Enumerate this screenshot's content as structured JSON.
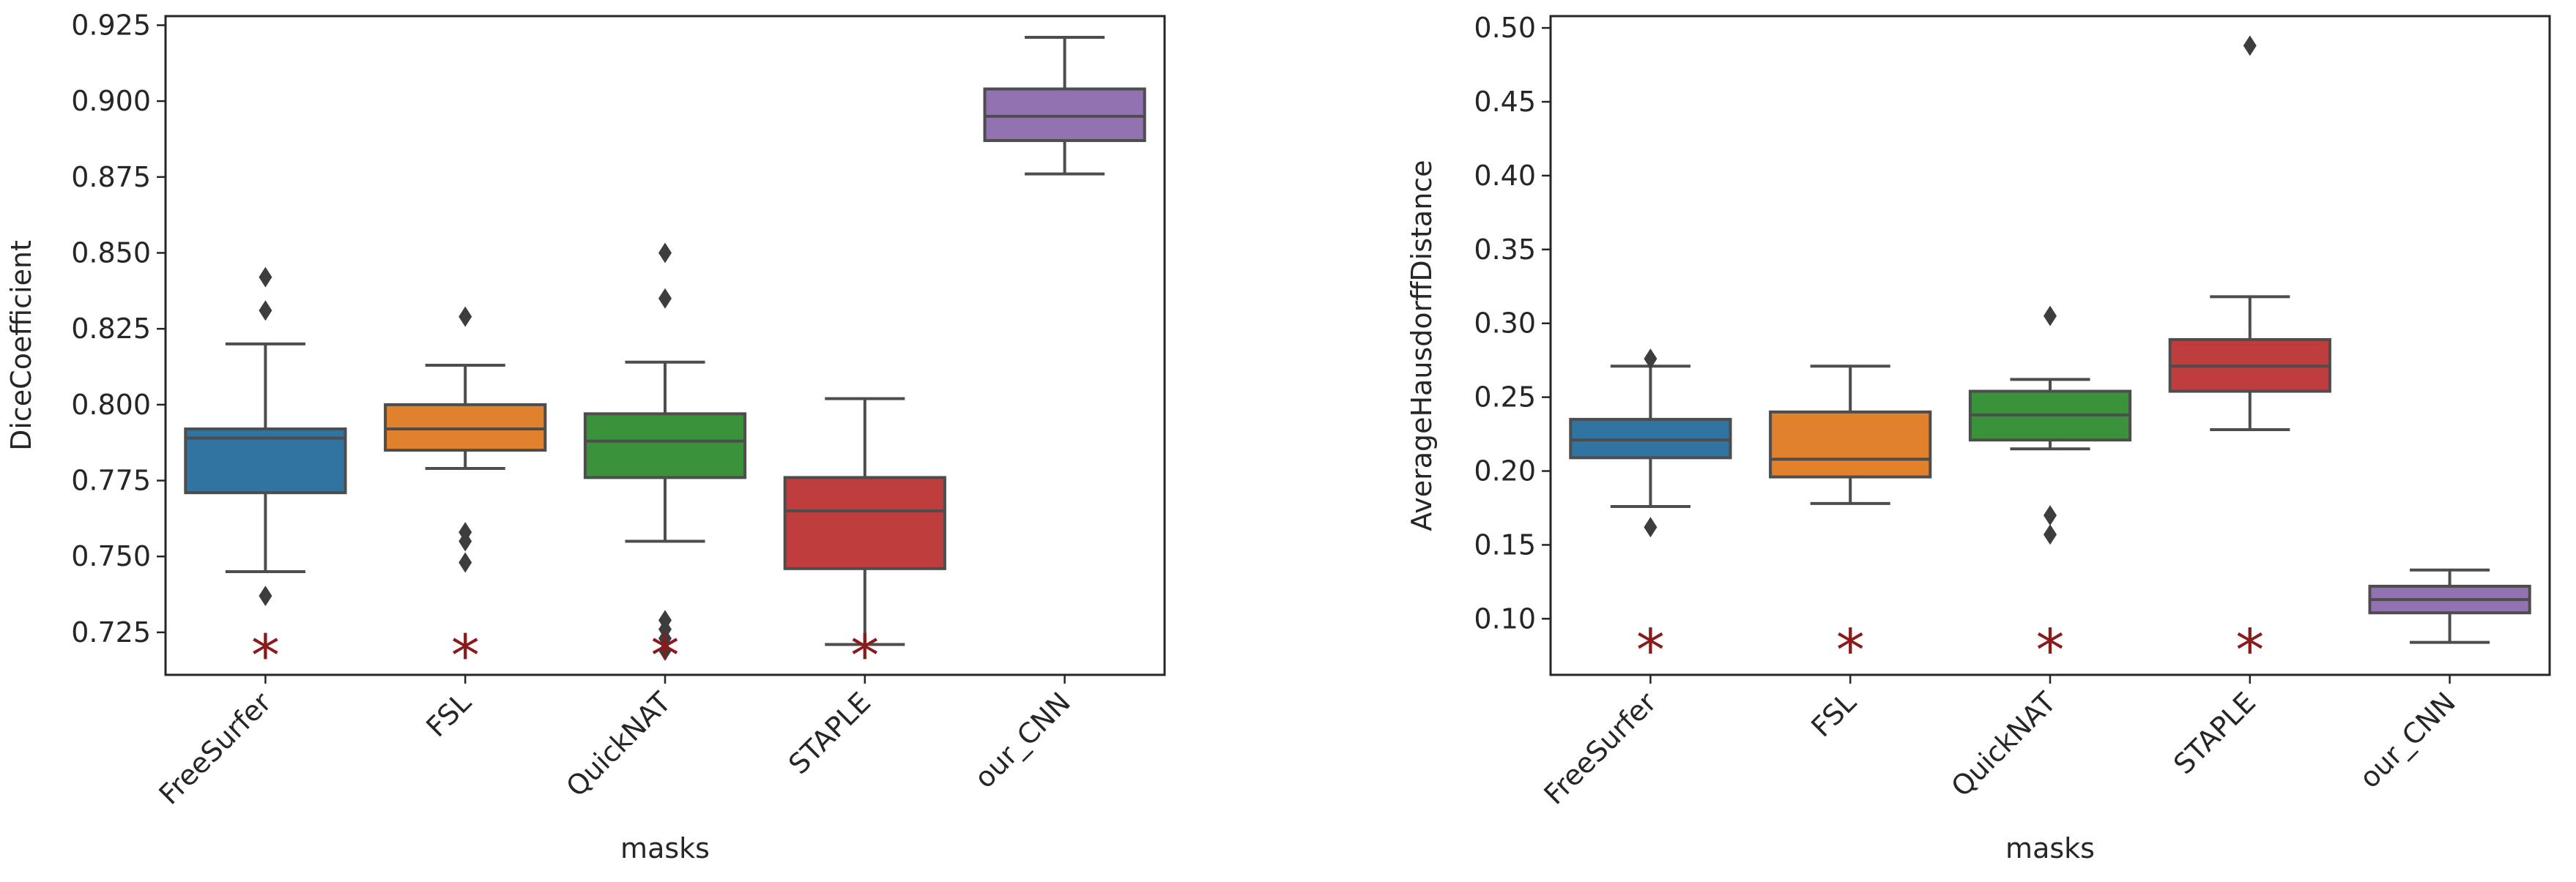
{
  "chart_data": [
    {
      "type": "box",
      "title": "",
      "xlabel": "masks",
      "ylabel": "DiceCoefficient",
      "ylim": [
        0.711,
        0.928
      ],
      "yticks": [
        "0.725",
        "0.750",
        "0.775",
        "0.800",
        "0.825",
        "0.850",
        "0.875",
        "0.900",
        "0.925"
      ],
      "categories": [
        "FreeSurfer",
        "FSL",
        "QuickNAT",
        "STAPLE",
        "our_CNN"
      ],
      "boxes": [
        {
          "name": "FreeSurfer",
          "color": "#3274a1",
          "whisker_low": 0.745,
          "q1": 0.771,
          "median": 0.789,
          "q3": 0.792,
          "whisker_high": 0.82,
          "outliers": [
            0.737,
            0.831,
            0.842
          ],
          "star": true
        },
        {
          "name": "FSL",
          "color": "#e1812c",
          "whisker_low": 0.779,
          "q1": 0.785,
          "median": 0.792,
          "q3": 0.8,
          "whisker_high": 0.813,
          "outliers": [
            0.748,
            0.755,
            0.758,
            0.829
          ],
          "star": true
        },
        {
          "name": "QuickNAT",
          "color": "#3a923a",
          "whisker_low": 0.755,
          "q1": 0.776,
          "median": 0.788,
          "q3": 0.797,
          "whisker_high": 0.814,
          "outliers": [
            0.719,
            0.723,
            0.726,
            0.729,
            0.835,
            0.85
          ],
          "star": true
        },
        {
          "name": "STAPLE",
          "color": "#c03d3e",
          "whisker_low": 0.721,
          "q1": 0.746,
          "median": 0.765,
          "q3": 0.776,
          "whisker_high": 0.802,
          "outliers": [],
          "star": true
        },
        {
          "name": "our_CNN",
          "color": "#9372b2",
          "whisker_low": 0.876,
          "q1": 0.887,
          "median": 0.895,
          "q3": 0.904,
          "whisker_high": 0.921,
          "outliers": [],
          "star": false
        }
      ],
      "star_marker": {
        "symbol": "*",
        "color": "#8b1a1a",
        "y": 0.718
      }
    },
    {
      "type": "box",
      "title": "",
      "xlabel": "masks",
      "ylabel": "AverageHausdorffDistance",
      "ylim": [
        0.062,
        0.508
      ],
      "yticks": [
        "0.10",
        "0.15",
        "0.20",
        "0.25",
        "0.30",
        "0.35",
        "0.40",
        "0.45",
        "0.50"
      ],
      "categories": [
        "FreeSurfer",
        "FSL",
        "QuickNAT",
        "STAPLE",
        "our_CNN"
      ],
      "boxes": [
        {
          "name": "FreeSurfer",
          "color": "#3274a1",
          "whisker_low": 0.176,
          "q1": 0.209,
          "median": 0.221,
          "q3": 0.235,
          "whisker_high": 0.271,
          "outliers": [
            0.162,
            0.276
          ],
          "star": true
        },
        {
          "name": "FSL",
          "color": "#e1812c",
          "whisker_low": 0.178,
          "q1": 0.196,
          "median": 0.208,
          "q3": 0.24,
          "whisker_high": 0.271,
          "outliers": [],
          "star": true
        },
        {
          "name": "QuickNAT",
          "color": "#3a923a",
          "whisker_low": 0.215,
          "q1": 0.221,
          "median": 0.238,
          "q3": 0.254,
          "whisker_high": 0.262,
          "outliers": [
            0.157,
            0.17,
            0.305
          ],
          "star": true
        },
        {
          "name": "STAPLE",
          "color": "#c03d3e",
          "whisker_low": 0.228,
          "q1": 0.254,
          "median": 0.271,
          "q3": 0.289,
          "whisker_high": 0.318,
          "outliers": [
            0.488
          ],
          "star": true
        },
        {
          "name": "our_CNN",
          "color": "#9372b2",
          "whisker_low": 0.084,
          "q1": 0.104,
          "median": 0.113,
          "q3": 0.122,
          "whisker_high": 0.133,
          "outliers": [],
          "star": false
        }
      ],
      "star_marker": {
        "symbol": "*",
        "color": "#8b1a1a",
        "y": 0.08
      }
    }
  ]
}
